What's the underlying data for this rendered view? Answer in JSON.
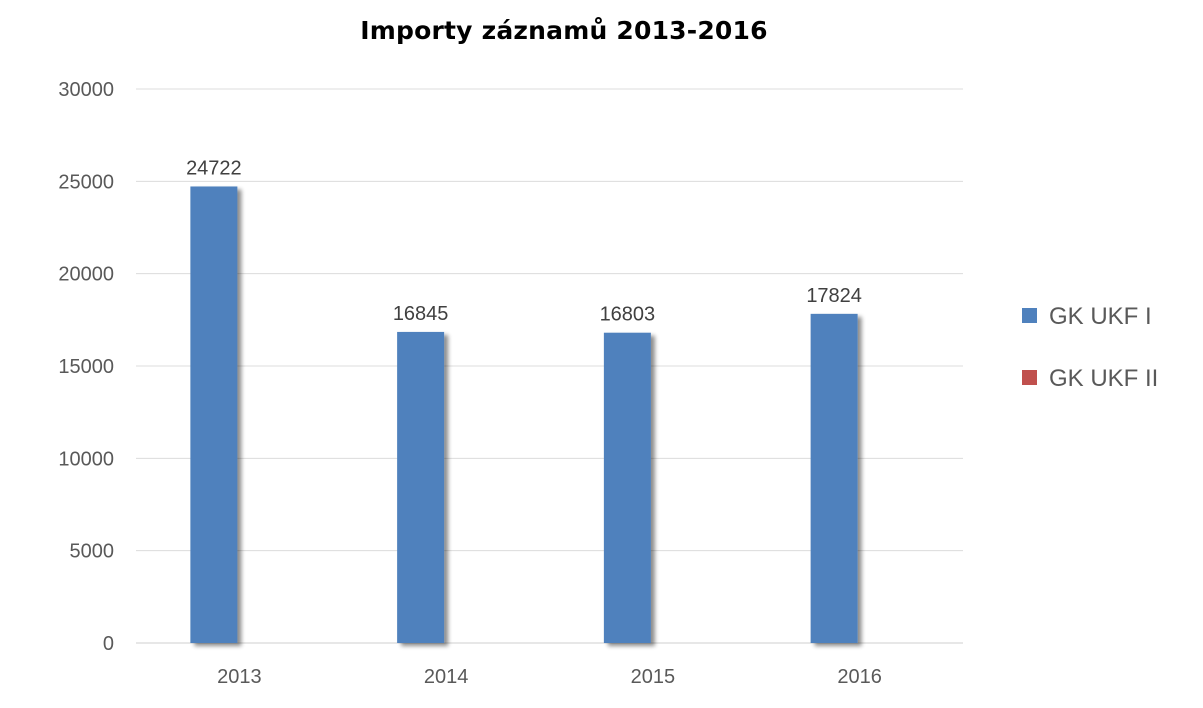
{
  "chart_data": {
    "type": "bar",
    "title": "Importy záznamů 2013-2016",
    "xlabel": "",
    "ylabel": "",
    "categories": [
      "2013",
      "2014",
      "2015",
      "2016"
    ],
    "series": [
      {
        "name": "GK UKF I",
        "values": [
          24722,
          16845,
          16803,
          17824
        ],
        "color": "#4f81bd"
      },
      {
        "name": "GK UKF II",
        "values": [
          0,
          0,
          0,
          0
        ],
        "color": "#c0504d"
      }
    ],
    "ylim": [
      0,
      30000
    ],
    "yticks": [
      0,
      5000,
      10000,
      15000,
      20000,
      25000,
      30000
    ],
    "data_labels": [
      "24722",
      "16845",
      "16803",
      "17824"
    ],
    "grid": true,
    "legend_position": "right"
  }
}
